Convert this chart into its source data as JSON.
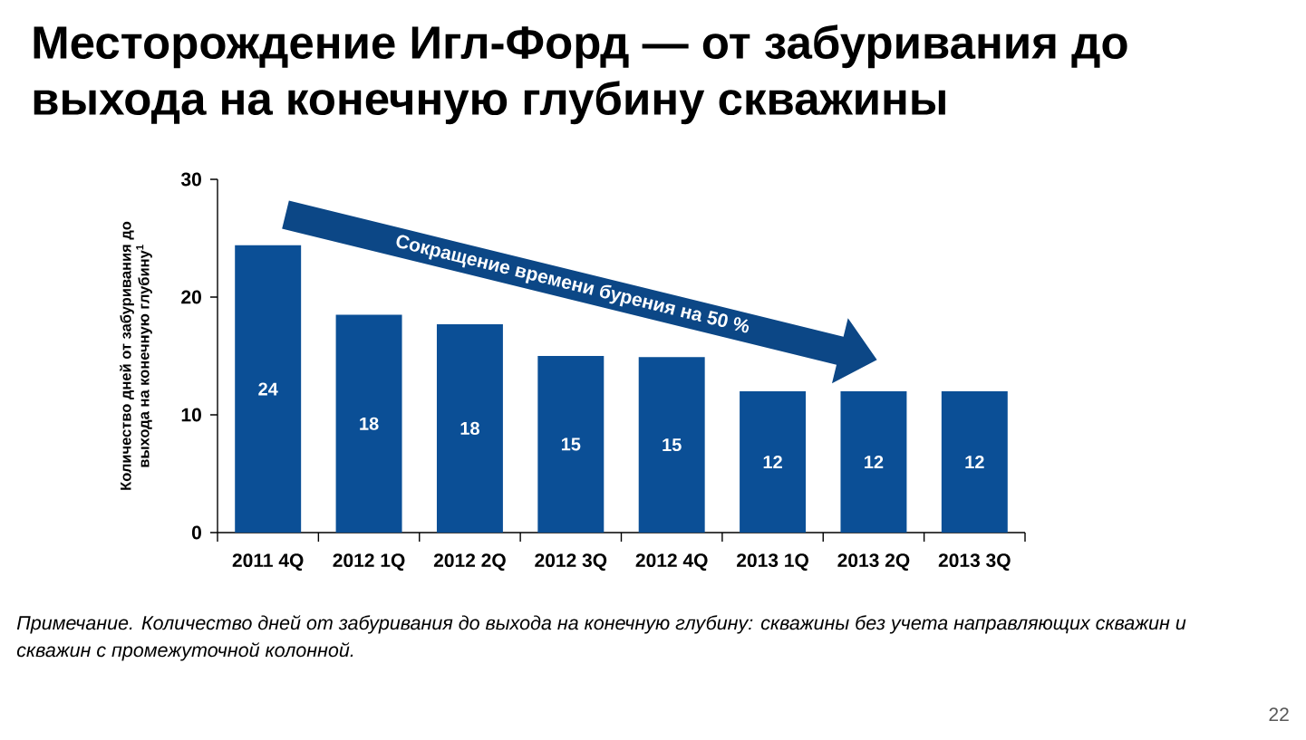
{
  "chart_data": {
    "type": "bar",
    "title": "Месторождение Игл-Форд — от забуривания до выхода на конечную глубину скважины",
    "ylabel": "Количество дней от забуривания до выхода на конечную глубину$^{1}$",
    "categories": [
      "2011 4Q",
      "2012 1Q",
      "2012 2Q",
      "2012 3Q",
      "2012 4Q",
      "2013 1Q",
      "2013 2Q",
      "2013 3Q"
    ],
    "values": [
      24.4,
      18.5,
      17.7,
      15,
      14.9,
      12,
      12,
      12
    ],
    "value_labels": [
      "24",
      "18",
      "18",
      "15",
      "15",
      "12",
      "12",
      "12"
    ],
    "color": "#0b4f96",
    "ylim": [
      0,
      30
    ],
    "yticks": [
      0,
      10,
      20,
      30
    ],
    "annotations": [
      "Сокращение времени бурения на 50 %",
      "Примечание. Количество дней от забуривания до выхода на конечную глубину: скважины без учета направляющих скважин и скважин с промежуточной колонной.",
      "22"
    ]
  }
}
